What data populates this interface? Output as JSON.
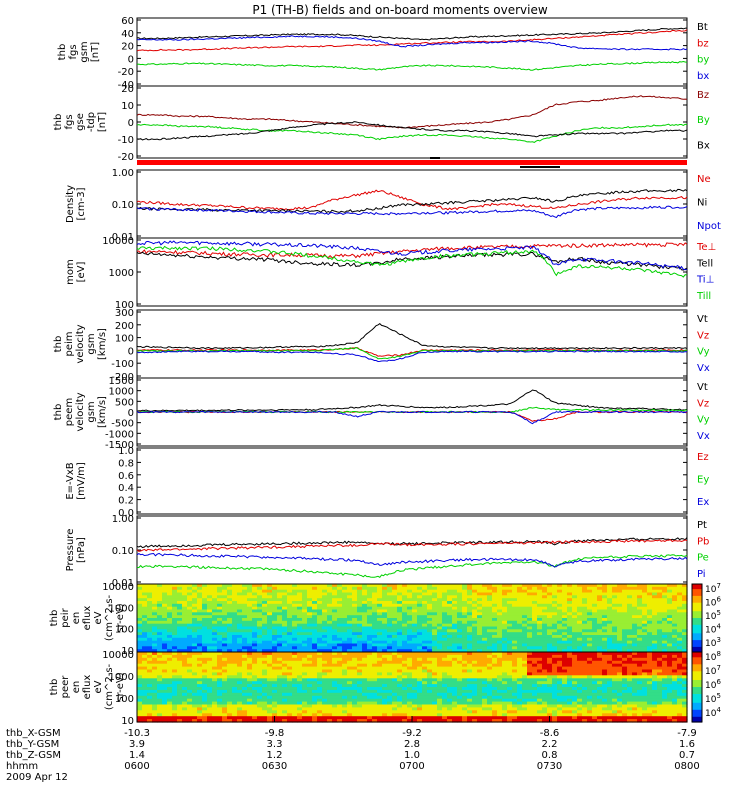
{
  "title": "P1  (TH-B) fields and on-board moments overview",
  "colors": {
    "black": "#000000",
    "red": "#e00000",
    "green": "#00d000",
    "blue": "#0000dd",
    "darkred": "#8b0000"
  },
  "chart_data": [
    {
      "type": "line",
      "ylabel": [
        "thb",
        "fgs",
        "gsm",
        "[nT]"
      ],
      "ylim": [
        -40,
        60
      ],
      "yticks": [
        "60",
        "40",
        "20",
        "0",
        "-20",
        "-40"
      ],
      "series": [
        {
          "name": "Bt",
          "color": "black",
          "values": [
            30,
            30,
            31,
            32,
            33,
            34,
            35,
            36,
            36,
            36,
            34,
            32,
            30,
            28,
            30,
            32,
            33,
            34,
            35,
            36,
            37,
            38,
            40,
            42,
            44,
            45
          ]
        },
        {
          "name": "bz",
          "color": "red",
          "values": [
            12,
            13,
            13,
            14,
            15,
            16,
            17,
            18,
            18,
            19,
            20,
            20,
            22,
            23,
            24,
            25,
            25,
            26,
            28,
            30,
            32,
            34,
            36,
            38,
            40,
            42
          ]
        },
        {
          "name": "by",
          "color": "green",
          "values": [
            -8,
            -8,
            -7,
            -7,
            -8,
            -9,
            -10,
            -10,
            -11,
            -12,
            -14,
            -16,
            -12,
            -10,
            -10,
            -11,
            -12,
            -14,
            -16,
            -13,
            -10,
            -8,
            -7,
            -6,
            -5,
            -5
          ]
        },
        {
          "name": "bx",
          "color": "blue",
          "values": [
            28,
            28,
            28,
            29,
            30,
            31,
            32,
            33,
            33,
            32,
            30,
            26,
            18,
            20,
            22,
            24,
            24,
            25,
            26,
            22,
            16,
            15,
            14,
            14,
            14,
            14
          ]
        }
      ]
    },
    {
      "type": "line",
      "ylabel": [
        "thb",
        "fgs",
        "gse",
        "-tdp",
        "[nT]"
      ],
      "ylim": [
        -25,
        25
      ],
      "yticks": [
        "20",
        "10",
        "0",
        "-10",
        "-20"
      ],
      "series": [
        {
          "name": "Bz",
          "color": "darkred",
          "values": [
            5,
            5,
            4,
            4,
            3,
            2,
            2,
            1,
            0,
            -1,
            -2,
            -3,
            -4,
            -3,
            -2,
            -1,
            0,
            2,
            5,
            12,
            14,
            15,
            17,
            18,
            17,
            16
          ]
        },
        {
          "name": "By",
          "color": "green",
          "values": [
            -2,
            -2,
            -3,
            -3,
            -4,
            -5,
            -6,
            -6,
            -7,
            -8,
            -9,
            -12,
            -10,
            -9,
            -9,
            -10,
            -11,
            -12,
            -14,
            -10,
            -6,
            -4,
            -4,
            -3,
            -2,
            -2
          ]
        },
        {
          "name": "Bx",
          "color": "black",
          "values": [
            -12,
            -12,
            -11,
            -10,
            -9,
            -8,
            -6,
            -4,
            -2,
            -1,
            0,
            -2,
            -4,
            -5,
            -6,
            -6,
            -7,
            -8,
            -10,
            -9,
            -8,
            -8,
            -8,
            -7,
            -6,
            -6
          ]
        }
      ]
    },
    {
      "type": "line",
      "ylabel": [
        "Density",
        "[cm-3]"
      ],
      "ylim": [
        0.01,
        10
      ],
      "log": true,
      "yticks": [
        "1.00",
        "0.10",
        "0.01"
      ],
      "series": [
        {
          "name": "Ne",
          "color": "red",
          "values": [
            0.4,
            0.35,
            0.3,
            0.28,
            0.25,
            0.22,
            0.2,
            0.2,
            0.22,
            0.5,
            0.8,
            1.2,
            0.6,
            0.3,
            0.2,
            0.2,
            0.3,
            0.3,
            0.25,
            0.2,
            0.3,
            0.4,
            0.5,
            0.6,
            0.6,
            0.6
          ]
        },
        {
          "name": "Ni",
          "color": "black",
          "values": [
            0.2,
            0.19,
            0.18,
            0.18,
            0.17,
            0.17,
            0.16,
            0.16,
            0.15,
            0.15,
            0.16,
            0.2,
            0.3,
            0.3,
            0.35,
            0.4,
            0.45,
            0.5,
            0.6,
            0.4,
            0.7,
            0.9,
            1.1,
            1.2,
            1.2,
            1.3
          ]
        },
        {
          "name": "Npot",
          "color": "blue",
          "values": [
            0.2,
            0.19,
            0.18,
            0.17,
            0.16,
            0.15,
            0.14,
            0.13,
            0.12,
            0.12,
            0.12,
            0.12,
            0.12,
            0.13,
            0.13,
            0.14,
            0.15,
            0.16,
            0.16,
            0.08,
            0.18,
            0.2,
            0.21,
            0.22,
            0.23,
            0.24
          ]
        }
      ]
    },
    {
      "type": "line",
      "ylabel": [
        "mom",
        "[eV]"
      ],
      "ylim": [
        100,
        10000
      ],
      "log": true,
      "yticks": [
        "10000",
        "1000",
        "100"
      ],
      "series": [
        {
          "name": "Te⊥",
          "color": "red",
          "values": [
            4000,
            4000,
            3800,
            3600,
            3400,
            3300,
            3200,
            3200,
            3100,
            3000,
            3000,
            3500,
            4000,
            4500,
            5000,
            5200,
            5400,
            5600,
            5800,
            6000,
            6000,
            6200,
            6300,
            6300,
            6400,
            6500
          ]
        },
        {
          "name": "Tell",
          "color": "black",
          "values": [
            3500,
            3300,
            3000,
            2800,
            2600,
            2500,
            2300,
            2000,
            1800,
            1700,
            1600,
            1800,
            2400,
            2600,
            2800,
            3000,
            3200,
            3300,
            3400,
            2000,
            2500,
            2000,
            1800,
            1600,
            1400,
            1200
          ]
        },
        {
          "name": "Ti⊥",
          "color": "blue",
          "values": [
            7000,
            7200,
            7400,
            7300,
            7000,
            6800,
            6500,
            6200,
            6000,
            5500,
            5000,
            4000,
            3500,
            3800,
            4200,
            4500,
            4800,
            5000,
            5200,
            1500,
            2500,
            2200,
            2000,
            1800,
            1500,
            1300
          ]
        },
        {
          "name": "Till",
          "color": "green",
          "values": [
            5000,
            5000,
            5100,
            5000,
            4800,
            4500,
            4000,
            3500,
            3000,
            2500,
            2000,
            1600,
            2000,
            2500,
            3000,
            3200,
            3500,
            3800,
            4000,
            800,
            1500,
            1400,
            1300,
            1100,
            900,
            800
          ]
        }
      ]
    },
    {
      "type": "line",
      "ylabel": [
        "thb",
        "peim",
        "velocity",
        "gsm",
        "[km/s]"
      ],
      "ylim": [
        -200,
        300
      ],
      "yticks": [
        "300",
        "200",
        "100",
        "0",
        "-100",
        "-200"
      ],
      "series": [
        {
          "name": "Vt",
          "color": "black",
          "values": [
            30,
            25,
            25,
            20,
            20,
            22,
            25,
            30,
            30,
            40,
            60,
            200,
            120,
            40,
            30,
            25,
            20,
            20,
            20,
            20,
            20,
            20,
            20,
            20,
            20,
            20
          ]
        },
        {
          "name": "Vz",
          "color": "red",
          "values": [
            5,
            5,
            5,
            5,
            5,
            5,
            5,
            5,
            5,
            10,
            20,
            -40,
            -30,
            5,
            5,
            5,
            5,
            5,
            5,
            5,
            5,
            5,
            5,
            5,
            5,
            5
          ]
        },
        {
          "name": "Vy",
          "color": "green",
          "values": [
            0,
            0,
            0,
            0,
            0,
            0,
            0,
            0,
            0,
            10,
            20,
            -60,
            -40,
            0,
            0,
            0,
            0,
            0,
            0,
            0,
            0,
            0,
            0,
            0,
            0,
            0
          ]
        },
        {
          "name": "Vx",
          "color": "blue",
          "values": [
            -10,
            -10,
            -5,
            -5,
            -5,
            -5,
            -10,
            -10,
            -10,
            -20,
            -30,
            -80,
            -60,
            -10,
            -5,
            -5,
            -5,
            -5,
            -5,
            -5,
            -5,
            -5,
            -5,
            -5,
            -5,
            -5
          ]
        }
      ]
    },
    {
      "type": "line",
      "ylabel": [
        "thb",
        "peem",
        "velocity",
        "gsm",
        "[km/s]"
      ],
      "ylim": [
        -1500,
        1500
      ],
      "yticks": [
        "1500",
        "1000",
        "500",
        "0",
        "-500",
        "-1000",
        "-1500"
      ],
      "series": [
        {
          "name": "Vt",
          "color": "black",
          "values": [
            60,
            60,
            70,
            70,
            80,
            80,
            90,
            100,
            100,
            150,
            200,
            300,
            250,
            200,
            200,
            250,
            300,
            350,
            1000,
            400,
            300,
            200,
            150,
            150,
            120,
            100
          ]
        },
        {
          "name": "Vz",
          "color": "red",
          "values": [
            0,
            0,
            0,
            0,
            0,
            0,
            0,
            0,
            0,
            0,
            0,
            0,
            0,
            0,
            0,
            0,
            0,
            0,
            -400,
            -300,
            0,
            0,
            0,
            0,
            0,
            0
          ]
        },
        {
          "name": "Vy",
          "color": "green",
          "values": [
            0,
            0,
            0,
            0,
            0,
            0,
            0,
            0,
            0,
            0,
            0,
            0,
            0,
            0,
            0,
            0,
            0,
            0,
            200,
            100,
            100,
            80,
            80,
            80,
            80,
            80
          ]
        },
        {
          "name": "Vx",
          "color": "blue",
          "values": [
            0,
            0,
            0,
            0,
            0,
            0,
            0,
            0,
            0,
            0,
            -200,
            0,
            0,
            0,
            0,
            0,
            0,
            0,
            -500,
            0,
            0,
            0,
            0,
            0,
            0,
            0
          ]
        }
      ]
    },
    {
      "type": "line",
      "ylabel": [
        "E=-VxB",
        "[mV/m]"
      ],
      "ylim": [
        0,
        1
      ],
      "yticks": [
        "1.0",
        "0.8",
        "0.6",
        "0.4",
        "0.2",
        "0.0"
      ],
      "series": [
        {
          "name": "Ez",
          "color": "red",
          "values": []
        },
        {
          "name": "Ey",
          "color": "green",
          "values": []
        },
        {
          "name": "Ex",
          "color": "blue",
          "values": []
        }
      ]
    },
    {
      "type": "line",
      "ylabel": [
        "Pressure",
        "[nPa]"
      ],
      "ylim": [
        0.01,
        10
      ],
      "log": true,
      "yticks": [
        "1.00",
        "0.10",
        "0.01"
      ],
      "series": [
        {
          "name": "Pt",
          "color": "black",
          "values": [
            0.45,
            0.47,
            0.5,
            0.52,
            0.55,
            0.58,
            0.6,
            0.62,
            0.65,
            0.68,
            0.7,
            0.6,
            0.6,
            0.62,
            0.65,
            0.68,
            0.7,
            0.72,
            0.75,
            0.6,
            0.8,
            0.85,
            0.9,
            0.95,
            1.0,
            1.0
          ]
        },
        {
          "name": "Pb",
          "color": "red",
          "values": [
            0.3,
            0.32,
            0.34,
            0.36,
            0.38,
            0.4,
            0.42,
            0.45,
            0.47,
            0.5,
            0.5,
            0.6,
            0.55,
            0.56,
            0.58,
            0.6,
            0.62,
            0.64,
            0.66,
            0.7,
            0.72,
            0.75,
            0.78,
            0.8,
            0.82,
            0.85
          ]
        },
        {
          "name": "Pe",
          "color": "green",
          "values": [
            0.06,
            0.06,
            0.06,
            0.055,
            0.05,
            0.05,
            0.045,
            0.04,
            0.035,
            0.03,
            0.025,
            0.02,
            0.04,
            0.05,
            0.06,
            0.07,
            0.08,
            0.09,
            0.1,
            0.06,
            0.12,
            0.15,
            0.16,
            0.17,
            0.17,
            0.18
          ]
        },
        {
          "name": "Pi",
          "color": "blue",
          "values": [
            0.2,
            0.2,
            0.19,
            0.18,
            0.17,
            0.16,
            0.15,
            0.14,
            0.13,
            0.12,
            0.11,
            0.07,
            0.09,
            0.1,
            0.11,
            0.12,
            0.12,
            0.12,
            0.12,
            0.06,
            0.1,
            0.11,
            0.12,
            0.13,
            0.13,
            0.14
          ]
        }
      ]
    },
    {
      "type": "heatmap",
      "ylabel": [
        "thb",
        "peir",
        "en",
        "eflux",
        "eV",
        "(cm^2-s-",
        "sr-eV)"
      ],
      "log": true,
      "yticks": [
        "10000",
        "1000",
        "100",
        "10"
      ],
      "colorbar": [
        "10^7",
        "10^6",
        "10^5",
        "10^4",
        "10^3"
      ]
    },
    {
      "type": "heatmap",
      "ylabel": [
        "thb",
        "peer",
        "en",
        "eflux",
        "eV",
        "(cm^2-s-",
        "sr-eV)"
      ],
      "log": true,
      "yticks": [
        "10000",
        "1000",
        "100",
        "10"
      ],
      "colorbar": [
        "10^8",
        "10^7",
        "10^6",
        "10^5",
        "10^4"
      ]
    }
  ],
  "xaxis": {
    "labels": [
      "thb_X-GSM",
      "thb_Y-GSM",
      "thb_Z-GSM",
      "hhmm",
      "2009 Apr 12"
    ],
    "ticks": [
      {
        "X": "-10.3",
        "Y": "3.9",
        "Z": "1.4",
        "t": "0600"
      },
      {
        "X": "-9.8",
        "Y": "3.3",
        "Z": "1.2",
        "t": "0630"
      },
      {
        "X": "-9.2",
        "Y": "2.8",
        "Z": "1.0",
        "t": "0700"
      },
      {
        "X": "-8.6",
        "Y": "2.2",
        "Z": "0.8",
        "t": "0730"
      },
      {
        "X": "-7.9",
        "Y": "1.6",
        "Z": "0.7",
        "t": "0800"
      }
    ]
  }
}
